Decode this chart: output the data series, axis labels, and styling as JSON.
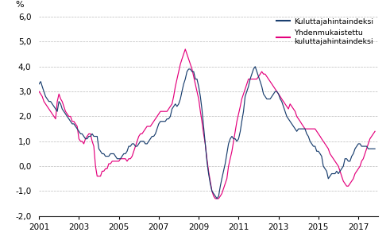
{
  "ylabel": "%",
  "ylim": [
    -2.0,
    6.0
  ],
  "yticks": [
    -2.0,
    -1.0,
    0.0,
    1.0,
    2.0,
    3.0,
    4.0,
    5.0,
    6.0
  ],
  "ytick_labels": [
    "-2,0",
    "-1,0",
    "0,0",
    "1,0",
    "2,0",
    "3,0",
    "4,0",
    "5,0",
    "6,0"
  ],
  "xtick_years": [
    2001,
    2003,
    2005,
    2007,
    2009,
    2011,
    2013,
    2015,
    2017
  ],
  "color_khi": "#1a3f6f",
  "color_hicp": "#e4007c",
  "legend_khi": "Kuluttajahintaindeksi",
  "legend_hicp_display": "Yhdenmukaistettu\nkuluttajahintaindeksi",
  "khi": [
    3.3,
    3.4,
    3.2,
    3.0,
    2.8,
    2.7,
    2.6,
    2.6,
    2.5,
    2.4,
    2.3,
    2.2,
    2.6,
    2.5,
    2.3,
    2.2,
    2.1,
    2.0,
    1.9,
    1.8,
    1.7,
    1.7,
    1.6,
    1.5,
    1.4,
    1.3,
    1.3,
    1.2,
    1.1,
    1.1,
    1.2,
    1.2,
    1.3,
    1.2,
    1.2,
    1.2,
    0.7,
    0.6,
    0.5,
    0.5,
    0.4,
    0.4,
    0.4,
    0.5,
    0.5,
    0.5,
    0.4,
    0.3,
    0.3,
    0.3,
    0.4,
    0.5,
    0.5,
    0.6,
    0.8,
    0.8,
    0.9,
    0.9,
    0.8,
    0.8,
    0.9,
    1.0,
    1.0,
    1.0,
    0.9,
    0.9,
    1.0,
    1.1,
    1.2,
    1.2,
    1.3,
    1.5,
    1.7,
    1.8,
    1.8,
    1.8,
    1.8,
    1.9,
    1.9,
    2.0,
    2.3,
    2.4,
    2.5,
    2.4,
    2.5,
    2.7,
    3.0,
    3.3,
    3.5,
    3.8,
    3.9,
    3.9,
    3.8,
    3.8,
    3.5,
    3.5,
    3.2,
    2.8,
    2.3,
    1.6,
    0.9,
    0.2,
    -0.3,
    -0.7,
    -1.0,
    -1.1,
    -1.2,
    -1.3,
    -1.2,
    -0.8,
    -0.5,
    -0.2,
    0.1,
    0.5,
    0.9,
    1.1,
    1.2,
    1.1,
    1.1,
    1.0,
    1.1,
    1.4,
    1.8,
    2.2,
    2.8,
    3.0,
    3.2,
    3.5,
    3.7,
    3.9,
    4.0,
    3.8,
    3.6,
    3.4,
    3.2,
    2.9,
    2.8,
    2.7,
    2.7,
    2.7,
    2.8,
    2.9,
    3.0,
    3.0,
    2.9,
    2.7,
    2.6,
    2.4,
    2.2,
    2.0,
    1.9,
    1.8,
    1.7,
    1.6,
    1.5,
    1.4,
    1.5,
    1.5,
    1.5,
    1.5,
    1.5,
    1.3,
    1.2,
    1.0,
    0.9,
    0.8,
    0.8,
    0.6,
    0.6,
    0.5,
    0.4,
    0.0,
    -0.1,
    -0.2,
    -0.5,
    -0.4,
    -0.3,
    -0.3,
    -0.3,
    -0.2,
    -0.3,
    -0.2,
    -0.1,
    0.0,
    0.3,
    0.3,
    0.2,
    0.2,
    0.4,
    0.5,
    0.7,
    0.8,
    0.9,
    0.9,
    0.8,
    0.8,
    0.8,
    0.8,
    0.7,
    0.7,
    0.7,
    0.7,
    0.7
  ],
  "hicp": [
    3.0,
    2.9,
    2.8,
    2.6,
    2.5,
    2.4,
    2.3,
    2.2,
    2.1,
    2.0,
    1.9,
    2.6,
    2.9,
    2.7,
    2.6,
    2.4,
    2.2,
    2.1,
    2.0,
    2.0,
    1.8,
    1.8,
    1.7,
    1.6,
    1.1,
    1.0,
    1.0,
    0.9,
    1.1,
    1.2,
    1.3,
    1.3,
    1.0,
    0.8,
    0.0,
    -0.4,
    -0.4,
    -0.4,
    -0.2,
    -0.2,
    -0.1,
    -0.1,
    0.1,
    0.1,
    0.2,
    0.2,
    0.2,
    0.2,
    0.2,
    0.3,
    0.3,
    0.3,
    0.3,
    0.2,
    0.3,
    0.3,
    0.4,
    0.6,
    0.8,
    1.0,
    1.2,
    1.3,
    1.3,
    1.4,
    1.5,
    1.6,
    1.6,
    1.6,
    1.7,
    1.8,
    1.9,
    2.0,
    2.1,
    2.2,
    2.2,
    2.2,
    2.2,
    2.2,
    2.3,
    2.4,
    2.5,
    2.8,
    3.2,
    3.5,
    3.8,
    4.1,
    4.3,
    4.5,
    4.7,
    4.5,
    4.3,
    4.1,
    3.9,
    3.6,
    3.3,
    3.0,
    2.7,
    2.2,
    1.8,
    1.3,
    0.9,
    0.3,
    -0.2,
    -0.6,
    -1.0,
    -1.2,
    -1.3,
    -1.3,
    -1.3,
    -1.2,
    -1.1,
    -0.9,
    -0.7,
    -0.5,
    0.0,
    0.3,
    0.6,
    1.0,
    1.4,
    1.8,
    2.1,
    2.4,
    2.7,
    2.9,
    3.1,
    3.3,
    3.5,
    3.5,
    3.5,
    3.5,
    3.5,
    3.5,
    3.6,
    3.7,
    3.8,
    3.7,
    3.7,
    3.6,
    3.5,
    3.4,
    3.3,
    3.2,
    3.1,
    3.0,
    2.9,
    2.8,
    2.7,
    2.6,
    2.5,
    2.4,
    2.3,
    2.5,
    2.4,
    2.3,
    2.2,
    2.0,
    1.9,
    1.8,
    1.7,
    1.6,
    1.5,
    1.5,
    1.5,
    1.5,
    1.5,
    1.5,
    1.5,
    1.4,
    1.3,
    1.2,
    1.1,
    1.0,
    0.9,
    0.8,
    0.7,
    0.5,
    0.4,
    0.3,
    0.2,
    0.1,
    0.0,
    -0.2,
    -0.4,
    -0.6,
    -0.7,
    -0.8,
    -0.8,
    -0.7,
    -0.6,
    -0.5,
    -0.3,
    -0.2,
    -0.1,
    0.0,
    0.2,
    0.3,
    0.5,
    0.7,
    0.9,
    1.1,
    1.2,
    1.3,
    1.4
  ]
}
